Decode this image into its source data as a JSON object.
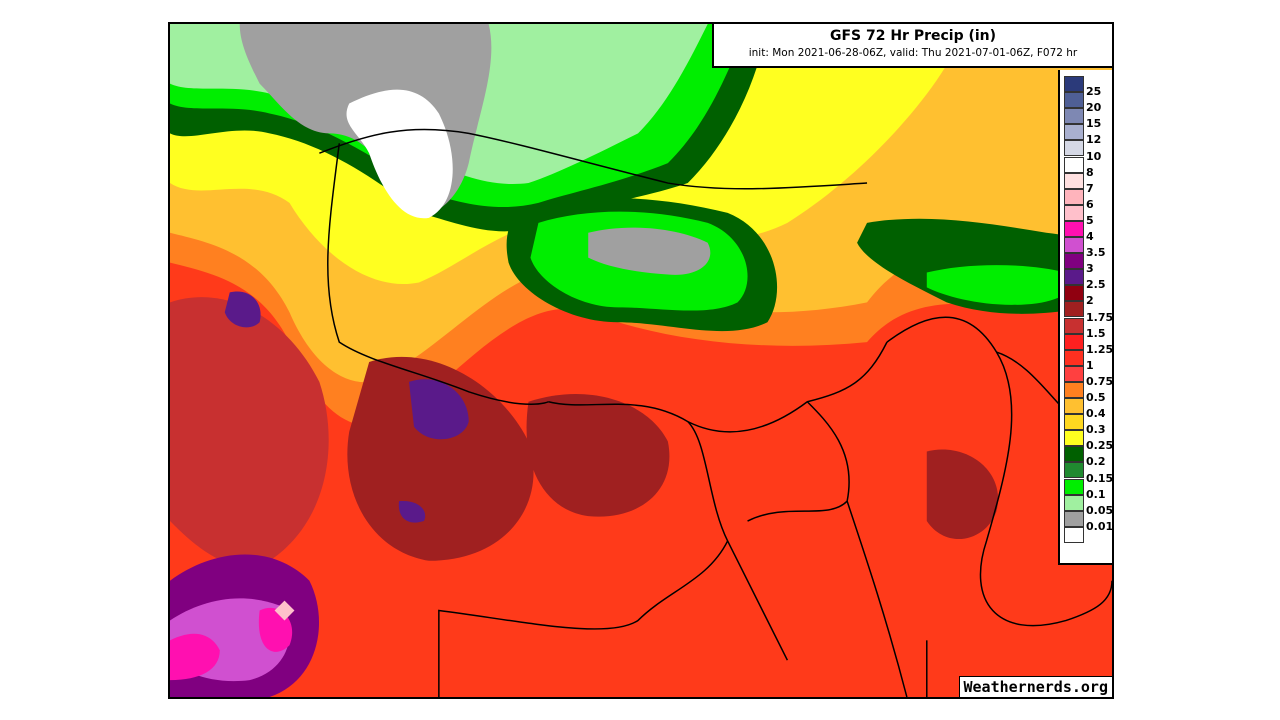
{
  "header": {
    "title": "GFS 72 Hr Precip (in)",
    "subtitle": "init: Mon 2021-06-28-06Z, valid: Thu 2021-07-01-06Z, F072 hr"
  },
  "legend": {
    "labels": [
      "25",
      "20",
      "15",
      "12",
      "10",
      "8",
      "7",
      "6",
      "5",
      "4",
      "3.5",
      "3",
      "2.5",
      "2",
      "1.75",
      "1.5",
      "1.25",
      "1",
      "0.75",
      "0.5",
      "0.4",
      "0.3",
      "0.25",
      "0.2",
      "0.15",
      "0.1",
      "0.05",
      "0.01"
    ],
    "colors": [
      "#2b3a7a",
      "#4f5f95",
      "#7e88b3",
      "#a9b0cf",
      "#d5d8e5",
      "#ffffff",
      "#ffe0e0",
      "#ffb4bc",
      "#ffc0cb",
      "#ff10b0",
      "#d050d0",
      "#800080",
      "#5a1a8a",
      "#900010",
      "#a02020",
      "#c83030",
      "#ff2020",
      "#ff3020",
      "#ff4040",
      "#ff8020",
      "#ffc030",
      "#ffd820",
      "#ffff20",
      "#006000",
      "#208a30",
      "#00ee00",
      "#a0f0a0",
      "#a0a0a0",
      "#ffffff"
    ]
  },
  "watermark": "Weathernerds.org"
}
